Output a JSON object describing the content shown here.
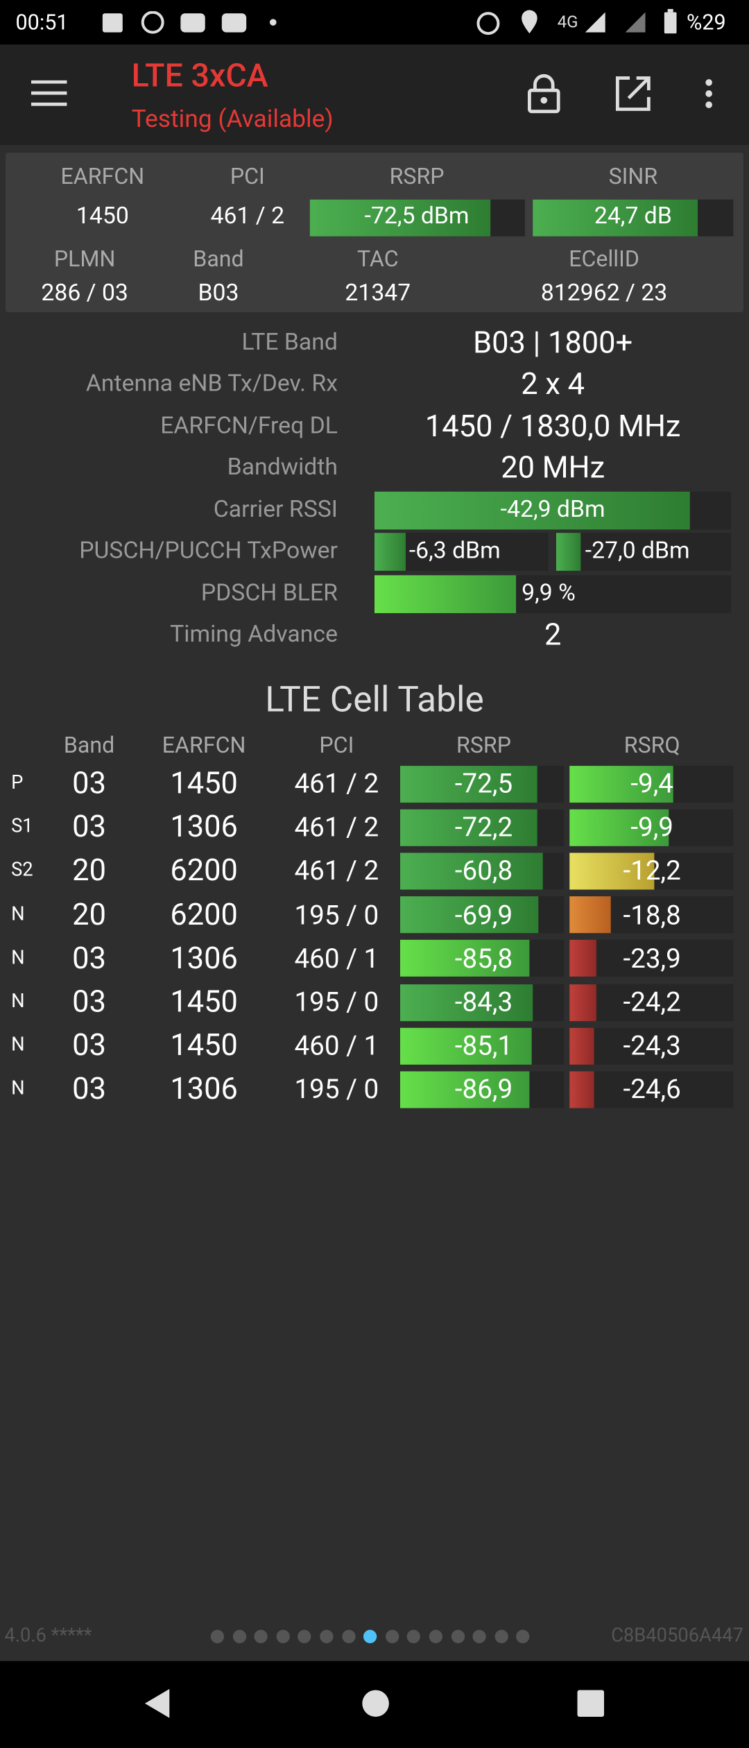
{
  "status_bar": {
    "time": "00:51",
    "network": "4G",
    "battery": "%29"
  },
  "app_bar": {
    "title": "LTE 3xCA",
    "subtitle": "Testing (Available)"
  },
  "summary": {
    "rows": [
      [
        "EARFCN",
        "PCI",
        "RSRP",
        "SINR"
      ],
      [
        "1450",
        "461 / 2",
        "-72,5 dBm",
        "24,7 dB"
      ],
      [
        "PLMN",
        "Band",
        "TAC",
        "ECellID"
      ],
      [
        "286 / 03",
        "B03",
        "21347",
        "812962 / 23"
      ]
    ]
  },
  "info": [
    {
      "label": "LTE Band",
      "values": [
        "B03 | 1800+"
      ]
    },
    {
      "label": "Antenna eNB Tx/Dev. Rx",
      "values": [
        "2 x 4"
      ]
    },
    {
      "label": "EARFCN/Freq DL",
      "values": [
        "1450 / 1830,0 MHz"
      ]
    },
    {
      "label": "Bandwidth",
      "values": [
        "20 MHz"
      ]
    },
    {
      "label": "Carrier RSSI",
      "values": [
        "-42,9 dBm"
      ]
    },
    {
      "label": "PUSCH/PUCCH TxPower",
      "values": [
        "-6,3 dBm",
        "-27,0 dBm"
      ]
    },
    {
      "label": "PDSCH BLER",
      "values": [
        "9,9 %"
      ]
    },
    {
      "label": "Timing Advance",
      "values": [
        "2"
      ]
    }
  ],
  "cell_table": {
    "title": "LTE Cell Table",
    "headers": [
      "Band",
      "EARFCN",
      "PCI",
      "RSRP",
      "RSRQ"
    ],
    "rows": [
      [
        "P",
        "03",
        "1450",
        "461 / 2",
        "-72,5",
        "-9,4"
      ],
      [
        "S1",
        "03",
        "1306",
        "461 / 2",
        "-72,2",
        "-9,9"
      ],
      [
        "S2",
        "20",
        "6200",
        "461 / 2",
        "-60,8",
        "-12,2"
      ],
      [
        "N",
        "20",
        "6200",
        "195 / 0",
        "-69,9",
        "-18,8"
      ],
      [
        "N",
        "03",
        "1306",
        "460 / 1",
        "-85,8",
        "-23,9"
      ],
      [
        "N",
        "03",
        "1450",
        "195 / 0",
        "-84,3",
        "-24,2"
      ],
      [
        "N",
        "03",
        "1450",
        "460 / 1",
        "-85,1",
        "-24,3"
      ],
      [
        "N",
        "03",
        "1306",
        "195 / 0",
        "-86,9",
        "-24,6"
      ]
    ]
  },
  "footer": {
    "version": "4.0.6 *****",
    "device_id": "C8B40506A447"
  }
}
